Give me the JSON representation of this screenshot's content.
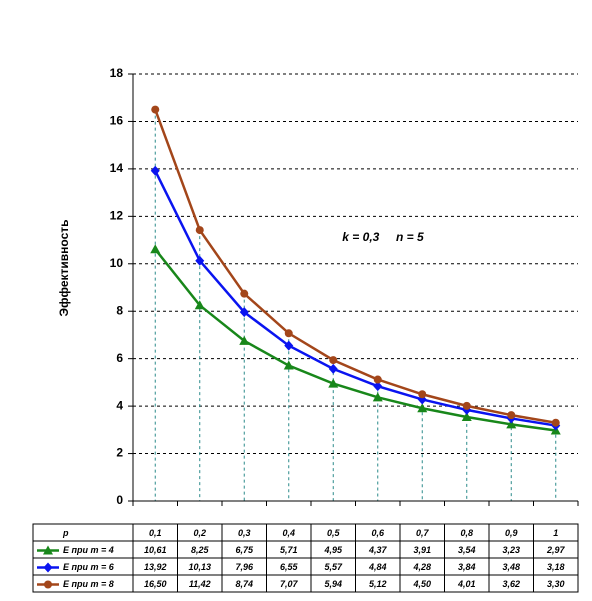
{
  "chart_data": {
    "type": "line",
    "y_label": "Эффективность",
    "annotation": "k = 0,3     n = 5",
    "x_label": "p",
    "categories": [
      "0,1",
      "0,2",
      "0,3",
      "0,4",
      "0,5",
      "0,6",
      "0,7",
      "0,8",
      "0,9",
      "1"
    ],
    "series": [
      {
        "name": "E при m = 4",
        "color": "#18871a",
        "marker": "triangle",
        "values": [
          10.61,
          8.25,
          6.75,
          5.71,
          4.95,
          4.37,
          3.91,
          3.54,
          3.23,
          2.97
        ],
        "value_labels": [
          "10,61",
          "8,25",
          "6,75",
          "5,71",
          "4,95",
          "4,37",
          "3,91",
          "3,54",
          "3,23",
          "2,97"
        ]
      },
      {
        "name": "E при m = 6",
        "color": "#0a14f0",
        "marker": "diamond",
        "values": [
          13.92,
          10.13,
          7.96,
          6.55,
          5.57,
          4.84,
          4.28,
          3.84,
          3.48,
          3.18
        ],
        "value_labels": [
          "13,92",
          "10,13",
          "7,96",
          "6,55",
          "5,57",
          "4,84",
          "4,28",
          "3,84",
          "3,48",
          "3,18"
        ]
      },
      {
        "name": "E при m = 8",
        "color": "#a3461a",
        "marker": "circle",
        "values": [
          16.5,
          11.42,
          8.74,
          7.07,
          5.94,
          5.12,
          4.5,
          4.01,
          3.62,
          3.3
        ],
        "value_labels": [
          "16,50",
          "11,42",
          "8,74",
          "7,07",
          "5,94",
          "5,12",
          "4,50",
          "4,01",
          "3,62",
          "3,30"
        ]
      }
    ],
    "ylim": [
      0,
      18
    ],
    "yticks": [
      0,
      2,
      4,
      6,
      8,
      10,
      12,
      14,
      16,
      18
    ],
    "grid": true
  }
}
